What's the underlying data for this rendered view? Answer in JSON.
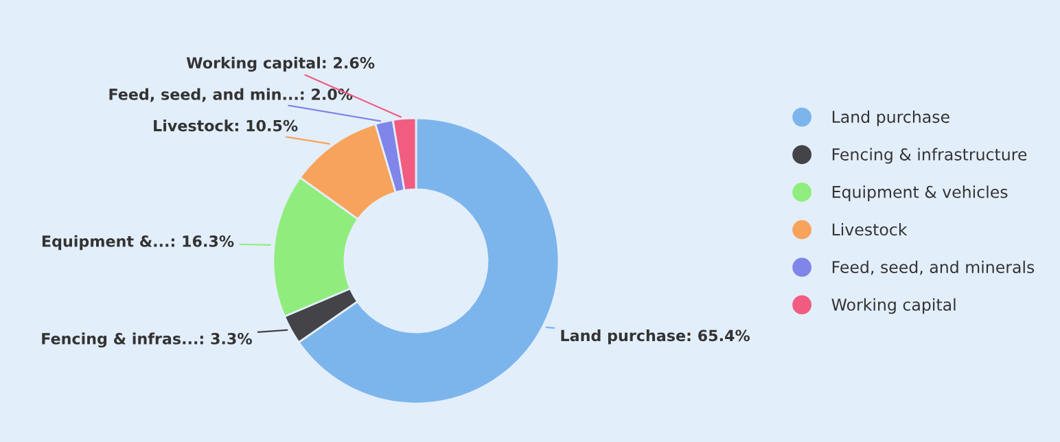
{
  "chart_data": {
    "type": "donut",
    "categories": [
      "Land purchase",
      "Fencing & infrastructure",
      "Equipment & vehicles",
      "Livestock",
      "Feed, seed, and minerals",
      "Working capital"
    ],
    "values": [
      65.4,
      3.3,
      16.3,
      10.5,
      2.0,
      2.6
    ],
    "colors": [
      "#7cb5ec",
      "#434348",
      "#90ed7d",
      "#f7a35c",
      "#8085e9",
      "#f15c80"
    ],
    "value_labels": [
      "Land purchase: 65.4%",
      "Fencing & infras...: 3.3%",
      "Equipment &...: 16.3%",
      "Livestock: 10.5%",
      "Feed, seed, and min...: 2.0%",
      "Working capital: 2.6%"
    ],
    "legend": "right"
  }
}
